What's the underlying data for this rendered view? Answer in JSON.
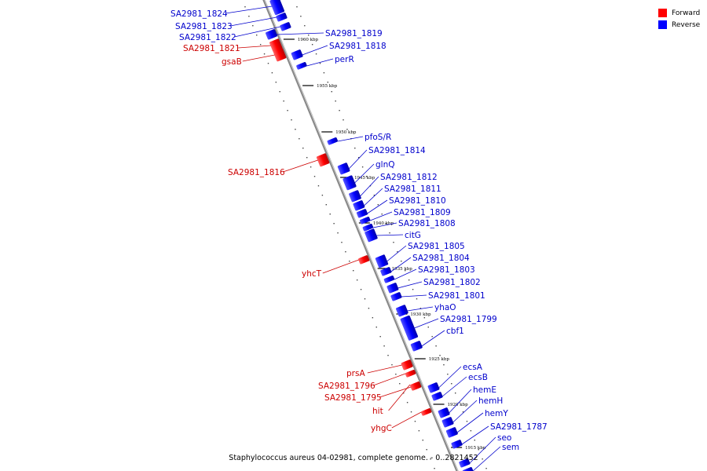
{
  "caption": "Staphylococcus aureus 04-02981, complete genome. - 0..2821452",
  "legend": [
    {
      "label": "Forward",
      "color": "#ff0000"
    },
    {
      "label": "Reverse",
      "color": "#0000ff"
    }
  ],
  "colors": {
    "forward": "#ff0000",
    "reverse": "#0000ff",
    "label_forward": "#cc0000",
    "label_reverse": "#0000cc",
    "backbone": "#888888"
  },
  "ticks": [
    "1960 kbp",
    "1955 kbp",
    "1950 kbp",
    "1945 kbp",
    "1940 kbp",
    "1935 kbp",
    "1930 kbp",
    "1925 kbp",
    "1920 kbp",
    "1915 kbp"
  ],
  "genes": [
    {
      "name": "SA2981_1824",
      "strand": "reverse"
    },
    {
      "name": "SA2981_1823",
      "strand": "reverse"
    },
    {
      "name": "SA2981_1822",
      "strand": "reverse"
    },
    {
      "name": "SA2981_1821",
      "strand": "forward"
    },
    {
      "name": "gsaB",
      "strand": "forward"
    },
    {
      "name": "SA2981_1819",
      "strand": "reverse"
    },
    {
      "name": "SA2981_1818",
      "strand": "reverse"
    },
    {
      "name": "perR",
      "strand": "reverse"
    },
    {
      "name": "pfoS/R",
      "strand": "reverse"
    },
    {
      "name": "SA2981_1816",
      "strand": "forward"
    },
    {
      "name": "SA2981_1814",
      "strand": "reverse"
    },
    {
      "name": "glnQ",
      "strand": "reverse"
    },
    {
      "name": "SA2981_1812",
      "strand": "reverse"
    },
    {
      "name": "SA2981_1811",
      "strand": "reverse"
    },
    {
      "name": "SA2981_1810",
      "strand": "reverse"
    },
    {
      "name": "SA2981_1809",
      "strand": "reverse"
    },
    {
      "name": "SA2981_1808",
      "strand": "reverse"
    },
    {
      "name": "citG",
      "strand": "reverse"
    },
    {
      "name": "SA2981_1805",
      "strand": "reverse"
    },
    {
      "name": "SA2981_1804",
      "strand": "reverse"
    },
    {
      "name": "yhcT",
      "strand": "forward"
    },
    {
      "name": "SA2981_1803",
      "strand": "reverse"
    },
    {
      "name": "SA2981_1802",
      "strand": "reverse"
    },
    {
      "name": "SA2981_1801",
      "strand": "reverse"
    },
    {
      "name": "yhaO",
      "strand": "reverse"
    },
    {
      "name": "SA2981_1799",
      "strand": "reverse"
    },
    {
      "name": "cbf1",
      "strand": "reverse"
    },
    {
      "name": "prsA",
      "strand": "forward"
    },
    {
      "name": "ecsA",
      "strand": "reverse"
    },
    {
      "name": "ecsB",
      "strand": "reverse"
    },
    {
      "name": "SA2981_1796",
      "strand": "forward"
    },
    {
      "name": "hemE",
      "strand": "reverse"
    },
    {
      "name": "SA2981_1795",
      "strand": "forward"
    },
    {
      "name": "hemH",
      "strand": "reverse"
    },
    {
      "name": "hit",
      "strand": "forward"
    },
    {
      "name": "hemY",
      "strand": "reverse"
    },
    {
      "name": "yhgC",
      "strand": "forward"
    },
    {
      "name": "SA2981_1787",
      "strand": "reverse"
    },
    {
      "name": "seo",
      "strand": "reverse"
    },
    {
      "name": "sem",
      "strand": "reverse"
    }
  ]
}
